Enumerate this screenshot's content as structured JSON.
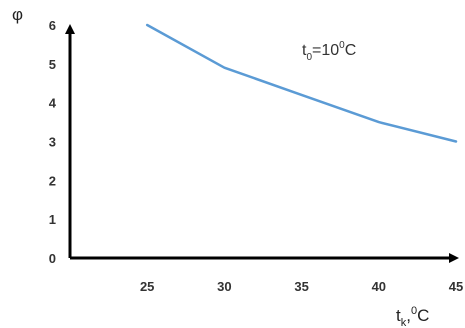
{
  "chart_data": {
    "type": "line",
    "title": "",
    "ylabel": "φ",
    "xlabel": {
      "base": "t",
      "sub": "k",
      "sep": ",",
      "sup": "0",
      "unit": "C"
    },
    "annotation": {
      "base": "t",
      "sub": "0",
      "eq": "=10",
      "sup": "0",
      "unit": "C"
    },
    "xlim": [
      20,
      45
    ],
    "ylim": [
      0,
      6
    ],
    "x_ticks": [
      25,
      30,
      35,
      40,
      45
    ],
    "y_ticks": [
      0,
      1,
      2,
      3,
      4,
      5,
      6
    ],
    "series": [
      {
        "color": "#5b9bd5",
        "x": [
          25,
          30,
          35,
          40,
          45
        ],
        "y": [
          6.0,
          4.9,
          4.2,
          3.5,
          3.0
        ]
      }
    ],
    "grid": false,
    "axis_color": "#000000"
  }
}
